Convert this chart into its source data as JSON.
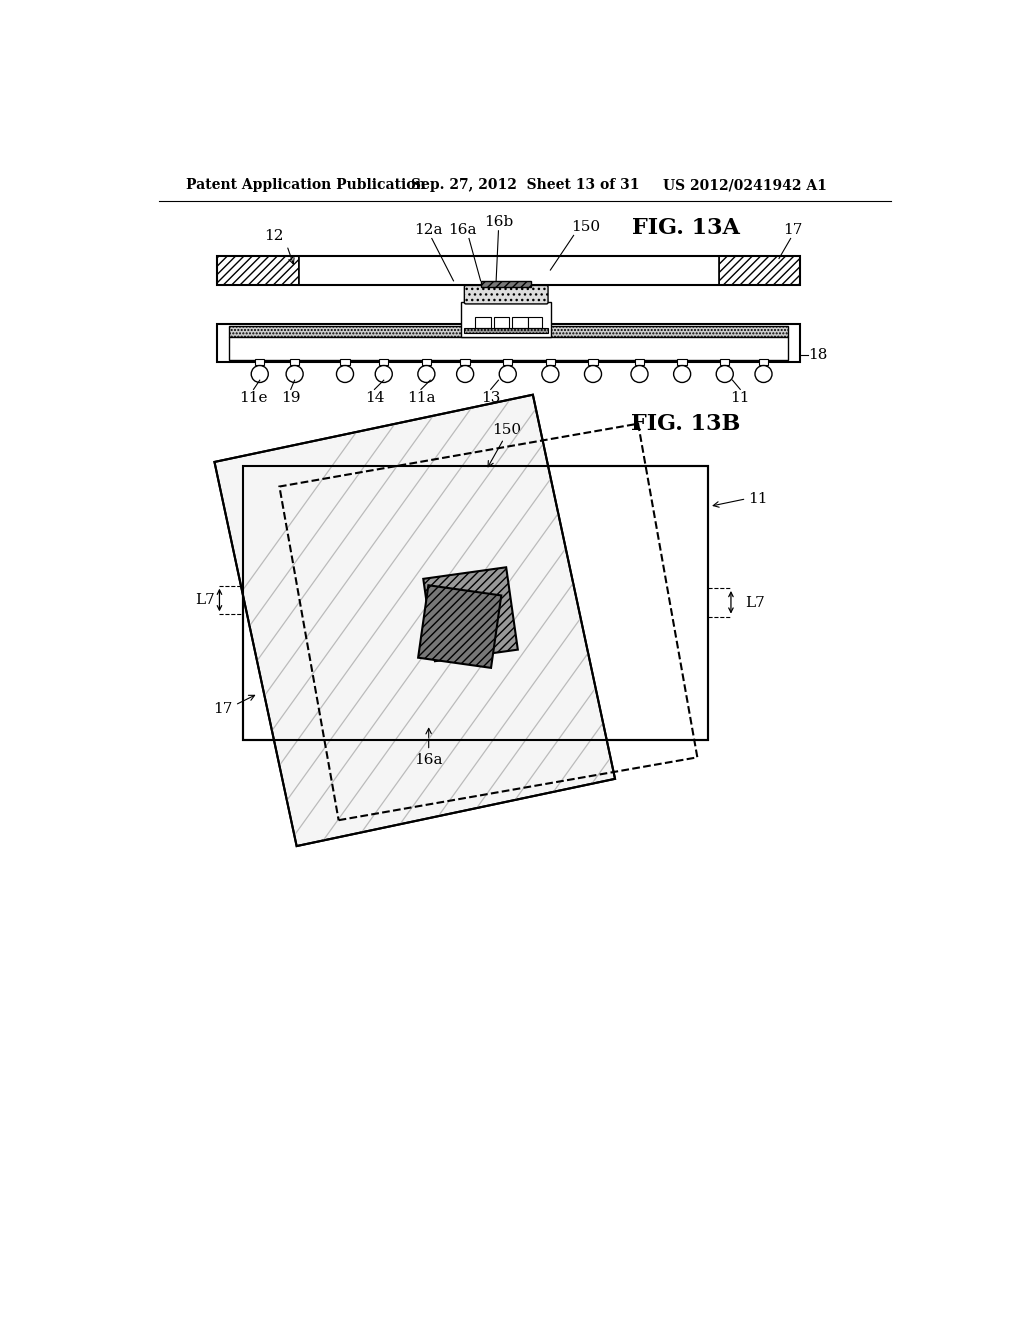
{
  "header_left": "Patent Application Publication",
  "header_mid": "Sep. 27, 2012  Sheet 13 of 31",
  "header_right": "US 2012/0241942 A1",
  "fig_a_title": "FIG. 13A",
  "fig_b_title": "FIG. 13B",
  "bg_color": "#ffffff",
  "line_color": "#000000",
  "label_fontsize": 11,
  "header_fontsize": 10
}
